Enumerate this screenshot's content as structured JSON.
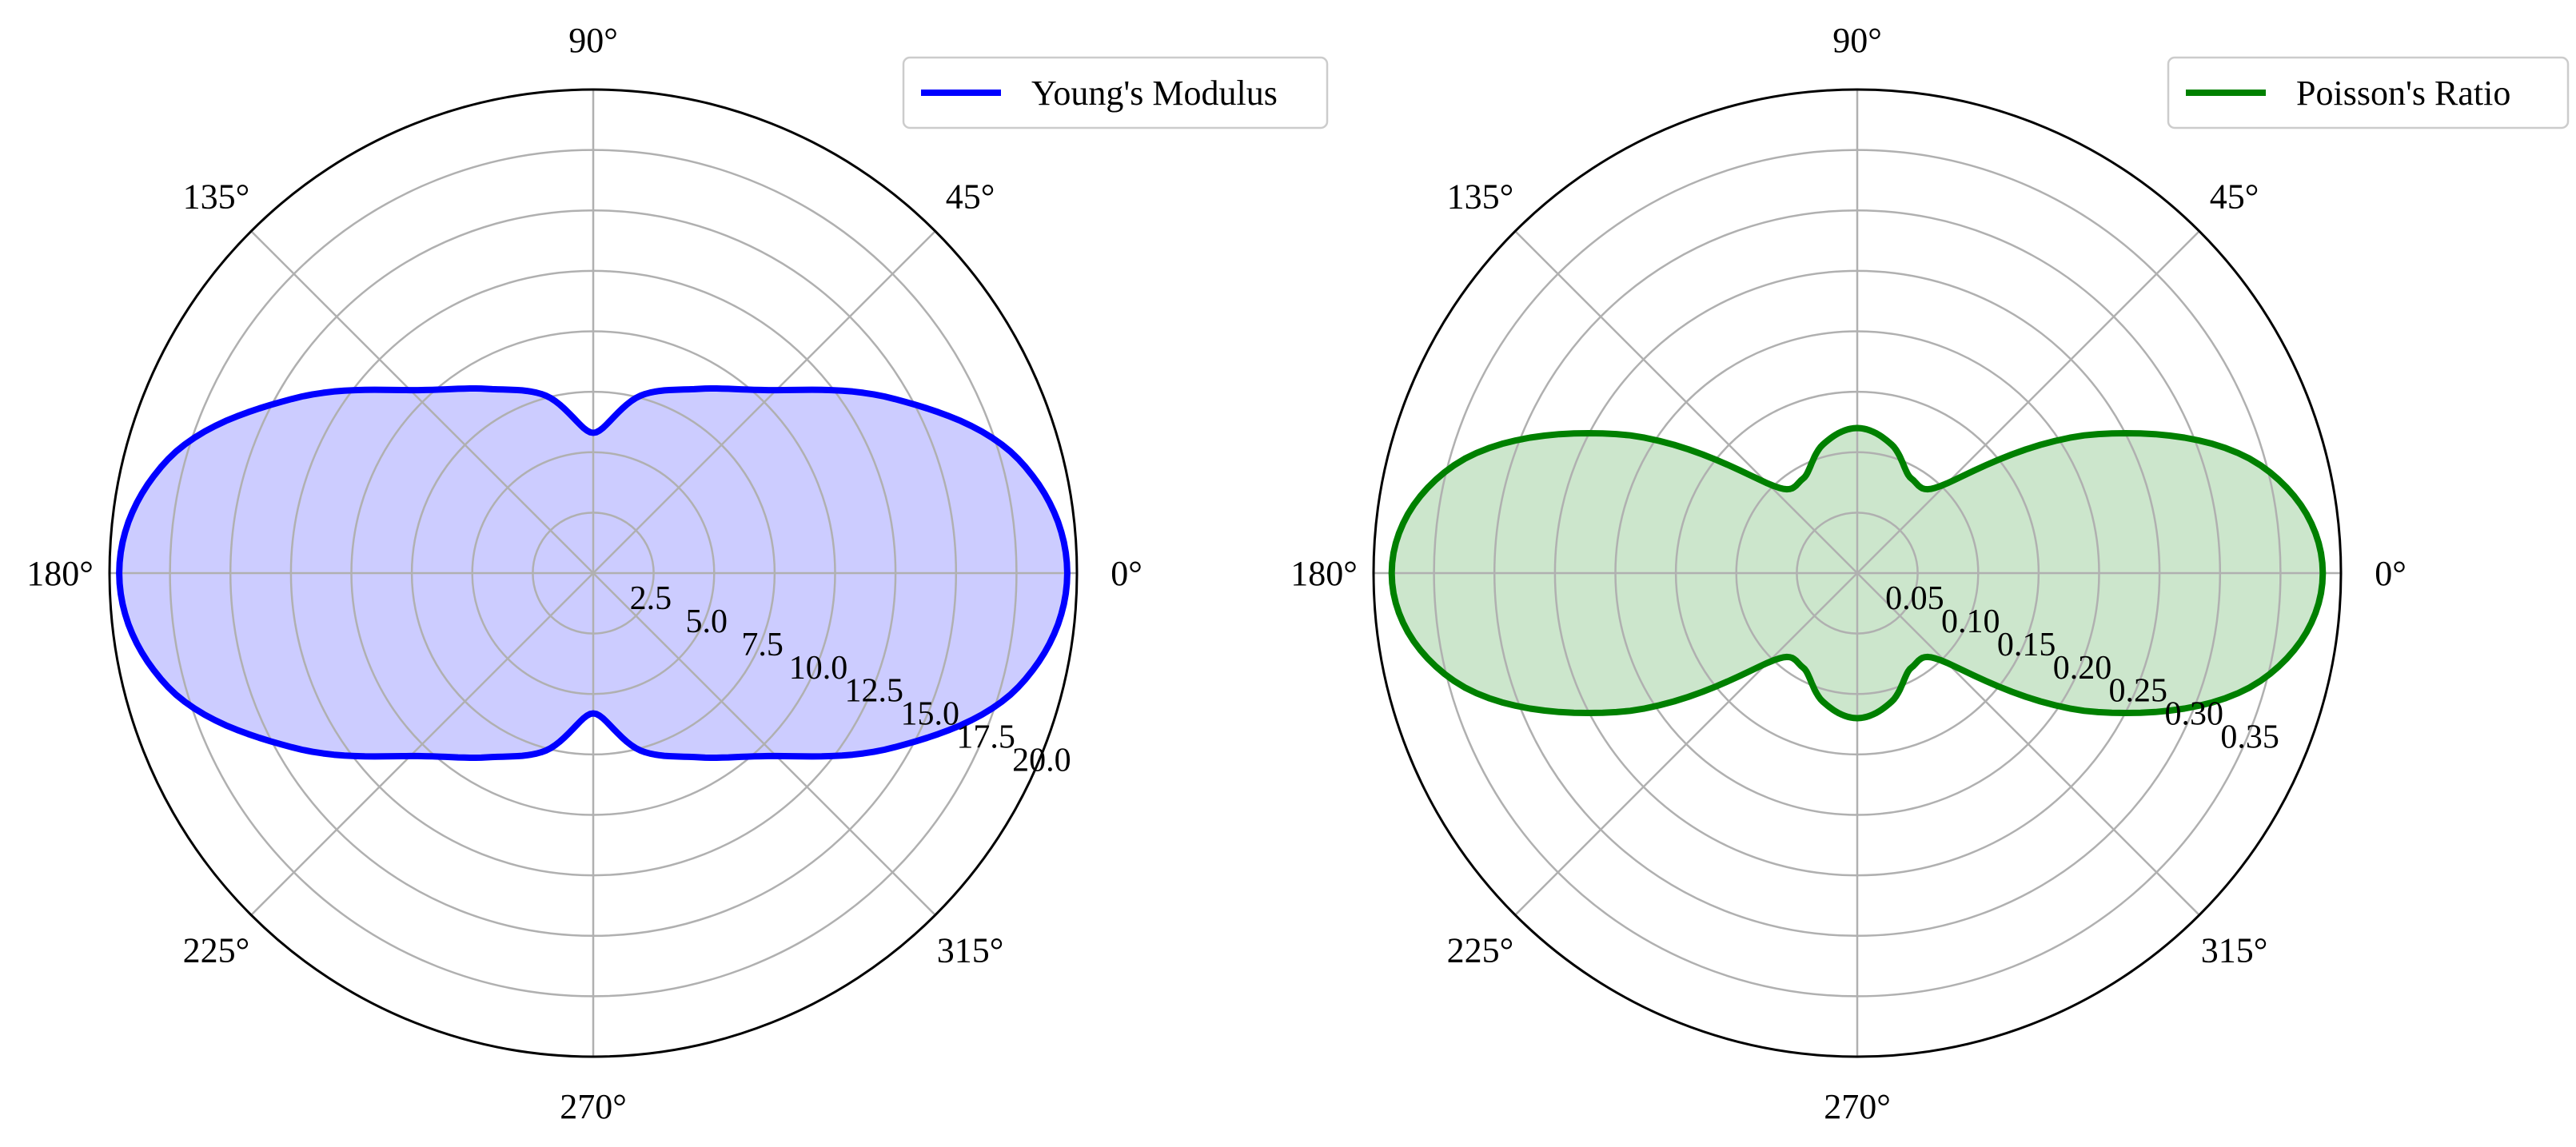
{
  "chart_data": [
    {
      "type": "polar-line",
      "angle_unit": "degrees",
      "angle_tick_labels": [
        "0°",
        "45°",
        "90°",
        "135°",
        "180°",
        "225°",
        "270°",
        "315°"
      ],
      "angle_ticks": [
        0,
        45,
        90,
        135,
        180,
        225,
        270,
        315
      ],
      "radial_ticks": [
        2.5,
        5.0,
        7.5,
        10.0,
        12.5,
        15.0,
        17.5,
        20.0
      ],
      "radial_tick_labels": [
        "2.5",
        "5.0",
        "7.5",
        "10.0",
        "12.5",
        "15.0",
        "17.5",
        "20.0"
      ],
      "rlim": [
        0,
        20.0
      ],
      "grid": true,
      "filled": true,
      "legend_position": "top-right",
      "series": [
        {
          "name": "Young's Modulus",
          "color": "#0000ff",
          "fill_color": "#ccccff",
          "theta": [
            0,
            15,
            30,
            45,
            60,
            75,
            90,
            105,
            120,
            135,
            150,
            165,
            180,
            195,
            210,
            225,
            240,
            255,
            270,
            285,
            300,
            315,
            330,
            345,
            360
          ],
          "r": [
            19.6,
            18.2,
            14.4,
            10.7,
            8.8,
            7.6,
            5.8,
            7.6,
            8.8,
            10.7,
            14.4,
            18.2,
            19.6,
            18.2,
            14.4,
            10.7,
            8.8,
            7.6,
            5.8,
            7.6,
            8.8,
            10.7,
            14.4,
            18.2,
            19.6
          ]
        }
      ]
    },
    {
      "type": "polar-line",
      "angle_unit": "degrees",
      "angle_tick_labels": [
        "0°",
        "45°",
        "90°",
        "135°",
        "180°",
        "225°",
        "270°",
        "315°"
      ],
      "angle_ticks": [
        0,
        45,
        90,
        135,
        180,
        225,
        270,
        315
      ],
      "radial_ticks": [
        0.05,
        0.1,
        0.15,
        0.2,
        0.25,
        0.3,
        0.35
      ],
      "radial_tick_labels": [
        "0.05",
        "0.10",
        "0.15",
        "0.20",
        "0.25",
        "0.30",
        "0.35"
      ],
      "rlim": [
        0,
        0.4
      ],
      "grid": true,
      "filled": true,
      "legend_position": "top-right",
      "series": [
        {
          "name": "Poisson's Ratio",
          "color": "#008000",
          "fill_color": "#cce6cc",
          "theta": [
            0,
            15,
            30,
            45,
            60,
            75,
            90,
            105,
            120,
            135,
            150,
            165,
            180,
            195,
            210,
            225,
            240,
            255,
            270,
            285,
            300,
            315,
            330,
            345,
            360
          ],
          "r": [
            0.385,
            0.345,
            0.23,
            0.105,
            0.09,
            0.11,
            0.12,
            0.11,
            0.09,
            0.105,
            0.23,
            0.345,
            0.385,
            0.345,
            0.23,
            0.105,
            0.09,
            0.11,
            0.12,
            0.11,
            0.09,
            0.105,
            0.23,
            0.345,
            0.385
          ]
        }
      ]
    }
  ]
}
